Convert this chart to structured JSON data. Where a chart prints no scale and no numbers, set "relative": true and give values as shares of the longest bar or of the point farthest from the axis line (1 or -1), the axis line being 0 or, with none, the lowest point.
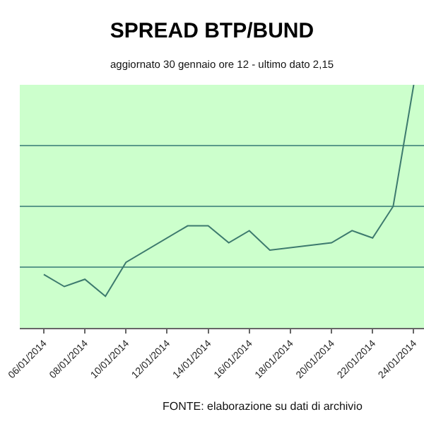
{
  "chart_data": {
    "type": "line",
    "title": "SPREAD BTP/BUND",
    "subtitle": "aggiornato 30 gennaio ore 12 - ultimo dato 2,15",
    "annotations": [
      "FONTE: elaborazione su dati di archivio"
    ],
    "x": [
      "2014-01-06",
      "2014-01-07",
      "2014-01-08",
      "2014-01-09",
      "2014-01-10",
      "2014-01-13",
      "2014-01-14",
      "2014-01-15",
      "2014-01-16",
      "2014-01-17",
      "2014-01-20",
      "2014-01-21",
      "2014-01-22",
      "2014-01-23",
      "2014-01-24"
    ],
    "series": [
      {
        "color": "#3d7a6e",
        "values": [
          0.22,
          0.17,
          0.2,
          0.13,
          0.27,
          0.42,
          0.42,
          0.35,
          0.4,
          0.32,
          0.35,
          0.4,
          0.37,
          0.5,
          1.0
        ]
      }
    ],
    "relative": true,
    "ref_lines": [
      {
        "axis": "y",
        "value": 0.25,
        "color": "#5a9a8a"
      },
      {
        "axis": "y",
        "value": 0.5,
        "color": "#5a9a8a"
      },
      {
        "axis": "y",
        "value": 0.75,
        "color": "#5a9a8a"
      }
    ],
    "xlim": [
      "2014-01-04T20:00",
      "2014-01-24T12:00"
    ],
    "xticks": [
      {
        "value": "2014-01-06",
        "label": "06/01/2014"
      },
      {
        "value": "2014-01-08",
        "label": "08/01/2014"
      },
      {
        "value": "2014-01-10",
        "label": "10/01/2014"
      },
      {
        "value": "2014-01-12",
        "label": "12/01/2014"
      },
      {
        "value": "2014-01-14",
        "label": "14/01/2014"
      },
      {
        "value": "2014-01-16",
        "label": "16/01/2014"
      },
      {
        "value": "2014-01-18",
        "label": "18/01/2014"
      },
      {
        "value": "2014-01-20",
        "label": "20/01/2014"
      },
      {
        "value": "2014-01-22",
        "label": "22/01/2014"
      },
      {
        "value": "2014-01-24",
        "label": "24/01/2014"
      }
    ],
    "tick_labels": "x",
    "marker": "none",
    "line_style": "solid"
  }
}
